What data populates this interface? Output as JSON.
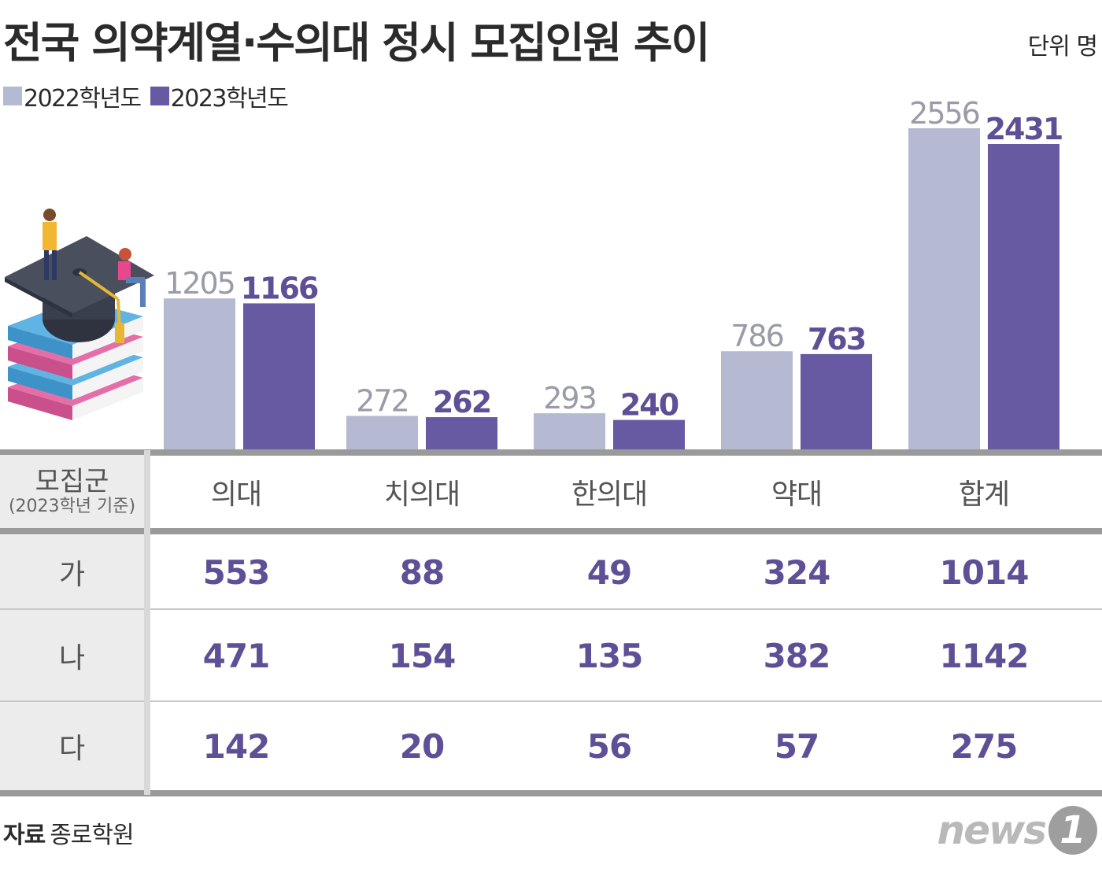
{
  "title": "전국 의약계열·수의대 정시 모집인원 추이",
  "unit": "단위 명",
  "legend": [
    {
      "label": "2022학년도",
      "color": "#b5b9d1"
    },
    {
      "label": "2023학년도",
      "color": "#675aa3"
    }
  ],
  "chart_data": {
    "type": "bar",
    "categories": [
      "의대",
      "치의대",
      "한의대",
      "약대",
      "합계"
    ],
    "series": [
      {
        "name": "2022학년도",
        "values": [
          1205,
          272,
          293,
          786,
          2556
        ]
      },
      {
        "name": "2023학년도",
        "values": [
          1166,
          262,
          240,
          763,
          2431
        ]
      }
    ]
  },
  "table": {
    "header_title": "모집군",
    "header_sub": "(2023학년 기준)",
    "columns": [
      "의대",
      "치의대",
      "한의대",
      "약대",
      "합계"
    ],
    "rows": [
      {
        "label": "가",
        "values": [
          "553",
          "88",
          "49",
          "324",
          "1014"
        ]
      },
      {
        "label": "나",
        "values": [
          "471",
          "154",
          "135",
          "382",
          "1142"
        ]
      },
      {
        "label": "다",
        "values": [
          "142",
          "20",
          "56",
          "57",
          "275"
        ]
      }
    ]
  },
  "source_label": "자료",
  "source_name": "종로학원",
  "logo_text": "news",
  "logo_num": "1",
  "colors": {
    "light": "#b5b9d1",
    "dark": "#675aa3",
    "value_text": "#5e4f96",
    "light_label": "#9a9aa8"
  }
}
